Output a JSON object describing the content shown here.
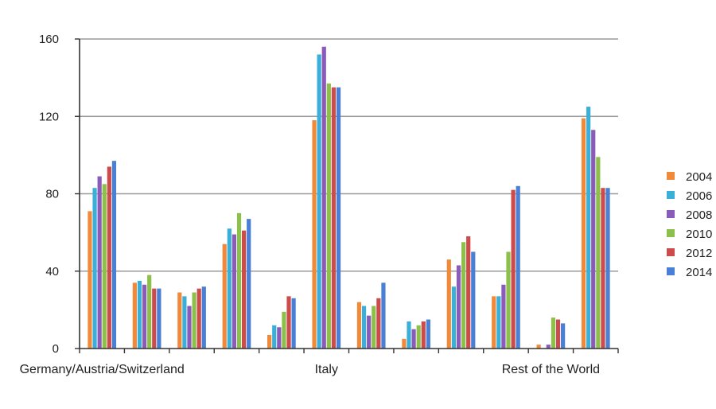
{
  "chart_data": {
    "type": "bar",
    "title": "",
    "xlabel": "",
    "ylabel": "",
    "ylim": [
      0,
      160
    ],
    "yticks": [
      0,
      40,
      80,
      120,
      160
    ],
    "grid": true,
    "legend_position": "right",
    "category_labels": [
      "Germany/Austria/Switzerland",
      "",
      "",
      "",
      "",
      "Italy",
      "",
      "",
      "",
      "",
      "Rest of the World",
      ""
    ],
    "series": [
      {
        "name": "2004",
        "color": "#f08a3a",
        "values": [
          71,
          34,
          29,
          54,
          7,
          118,
          24,
          5,
          46,
          27,
          2,
          119
        ]
      },
      {
        "name": "2006",
        "color": "#3ab0d8",
        "values": [
          83,
          35,
          27,
          62,
          12,
          152,
          22,
          14,
          32,
          27,
          0,
          125
        ]
      },
      {
        "name": "2008",
        "color": "#8a5bb8",
        "values": [
          89,
          33,
          22,
          59,
          11,
          156,
          17,
          10,
          43,
          33,
          2,
          113
        ]
      },
      {
        "name": "2010",
        "color": "#8dc04a",
        "values": [
          85,
          38,
          29,
          70,
          19,
          137,
          22,
          12,
          55,
          50,
          16,
          99
        ]
      },
      {
        "name": "2012",
        "color": "#cc4b4b",
        "values": [
          94,
          31,
          31,
          61,
          27,
          135,
          26,
          14,
          58,
          82,
          15,
          83
        ]
      },
      {
        "name": "2014",
        "color": "#4a7fd6",
        "values": [
          97,
          31,
          32,
          67,
          26,
          135,
          34,
          15,
          50,
          84,
          13,
          83
        ]
      }
    ]
  }
}
